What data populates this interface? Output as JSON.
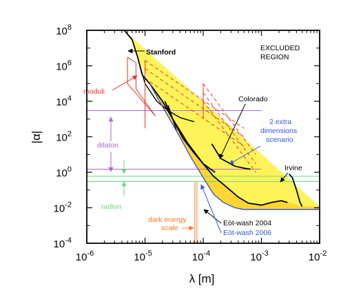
{
  "chart_data": {
    "type": "line",
    "title": "",
    "xlabel": "λ [m]",
    "ylabel": "|α|",
    "x_scale": "log",
    "y_scale": "log",
    "xlim": [
      1e-06,
      0.01
    ],
    "ylim": [
      0.0001,
      100000000.0
    ],
    "grid": false,
    "x_ticks": [
      {
        "value": 1e-06,
        "label": "10",
        "exp": "-6"
      },
      {
        "value": 1e-05,
        "label": "10",
        "exp": "-5"
      },
      {
        "value": 0.0001,
        "label": "10",
        "exp": "-4"
      },
      {
        "value": 0.001,
        "label": "10",
        "exp": "-3"
      },
      {
        "value": 0.01,
        "label": "10",
        "exp": "-2"
      }
    ],
    "y_ticks": [
      {
        "value": 0.0001,
        "label": "10",
        "exp": "-4"
      },
      {
        "value": 0.01,
        "label": "10",
        "exp": "-2"
      },
      {
        "value": 1,
        "label": "10",
        "exp": "0"
      },
      {
        "value": 100.0,
        "label": "10",
        "exp": "2"
      },
      {
        "value": 10000.0,
        "label": "10",
        "exp": "4"
      },
      {
        "value": 1000000.0,
        "label": "10",
        "exp": "6"
      },
      {
        "value": 100000000.0,
        "label": "10",
        "exp": "8"
      }
    ],
    "colors": {
      "excluded": "#fff35a",
      "excluded_2006": "#ffd633",
      "black": "#000000",
      "blue": "#3355dd",
      "red": "#ee3322",
      "purple": "#aa66dd",
      "green": "#66dd77",
      "orange": "#ff7722",
      "dark_blue": "#2233cc"
    },
    "excluded_region": {
      "label_line1": "EXCLUDED",
      "label_line2": "REGION",
      "boundary": [
        [
          4.4e-06,
          100000000.0
        ],
        [
          6e-06,
          30000000.0
        ],
        [
          7.5e-06,
          3000000.0
        ],
        [
          1.2e-05,
          100000.0
        ],
        [
          2e-05,
          10000.0
        ],
        [
          3e-05,
          1000.0
        ],
        [
          5.5e-05,
          40
        ],
        [
          0.0001,
          3
        ],
        [
          0.00015,
          0.6
        ],
        [
          0.00025,
          0.15
        ],
        [
          0.0004,
          0.04
        ],
        [
          0.0006,
          0.018
        ],
        [
          0.001,
          0.014
        ],
        [
          0.0015,
          0.02
        ],
        [
          0.0022,
          0.025
        ],
        [
          0.003,
          0.02
        ],
        [
          0.005,
          0.012
        ],
        [
          0.01,
          0.012
        ]
      ],
      "eotwash_2006_boundary": [
        [
          1.2e-05,
          100000.0
        ],
        [
          2e-05,
          5000.0
        ],
        [
          3.5e-05,
          200
        ],
        [
          6e-05,
          8
        ],
        [
          0.0001,
          0.5
        ],
        [
          0.00015,
          0.06
        ],
        [
          0.00022,
          0.02
        ],
        [
          0.00035,
          0.01
        ],
        [
          0.0005,
          0.008
        ],
        [
          0.001,
          0.008
        ],
        [
          0.01,
          0.008
        ]
      ]
    },
    "series": [
      {
        "name": "Stanford",
        "color": "#000000",
        "points": [
          [
            4.4e-06,
            100000000.0
          ],
          [
            6e-06,
            30000000.0
          ],
          [
            7.5e-06,
            3000000.0
          ],
          [
            9e-06,
            300000.0
          ],
          [
            1.2e-05,
            100000.0
          ],
          [
            2e-05,
            10000.0
          ],
          [
            3e-05,
            1000.0
          ],
          [
            5.5e-05,
            40
          ],
          [
            0.0001,
            3
          ],
          [
            0.00015,
            0.6
          ],
          [
            0.00025,
            0.15
          ],
          [
            0.0004,
            0.04
          ],
          [
            0.0006,
            0.018
          ],
          [
            0.001,
            0.014
          ],
          [
            0.0015,
            0.02
          ],
          [
            0.0022,
            0.025
          ],
          [
            0.0028,
            0.02
          ]
        ]
      },
      {
        "name": "Colorado",
        "color": "#000000",
        "points": [
          [
            0.00014,
            40
          ],
          [
            0.0002,
            6
          ],
          [
            0.00035,
            2.2
          ],
          [
            0.00055,
            1.6
          ],
          [
            0.00065,
            1.5
          ]
        ]
      },
      {
        "name": "Irvine",
        "color": "#000000",
        "points": [
          [
            0.003,
            0.8
          ],
          [
            0.0034,
            0.5
          ],
          [
            0.004,
            0.1
          ],
          [
            0.0046,
            0.02
          ],
          [
            0.005,
            0.012
          ]
        ]
      },
      {
        "name": "Eöt-wash 2004",
        "color": "#000000",
        "points": [
          [
            2.2e-05,
            10000.0
          ],
          [
            3e-05,
            1000.0
          ],
          [
            4.5e-05,
            80
          ],
          [
            7e-05,
            12
          ],
          [
            0.0001,
            3
          ],
          [
            0.00016,
            1
          ]
        ]
      },
      {
        "name": "Eöt-wash 2006",
        "color": "#3355dd",
        "points": [
          [
            1.2e-05,
            100000.0
          ],
          [
            2e-05,
            5000.0
          ],
          [
            3.5e-05,
            200
          ],
          [
            6e-05,
            8
          ],
          [
            0.0001,
            0.5
          ],
          [
            0.00015,
            0.06
          ],
          [
            0.00022,
            0.02
          ],
          [
            0.00035,
            0.01
          ],
          [
            0.0005,
            0.008
          ],
          [
            0.001,
            0.008
          ],
          [
            0.01,
            0.008
          ]
        ]
      }
    ],
    "extra_lines": [
      {
        "name": "Stanford lower branch",
        "color": "#000000",
        "points": [
          [
            7.5e-06,
            3000000.0
          ],
          [
            1e-05,
            100000.0
          ],
          [
            1.6e-05,
            10000.0
          ],
          [
            2.5e-05,
            3000.0
          ],
          [
            4e-05,
            1200.0
          ],
          [
            7e-05,
            700.0
          ]
        ]
      },
      {
        "name": "Stanford steep segment",
        "color": "#000000",
        "points": [
          [
            2.5e-05,
            6000.0
          ],
          [
            3e-05,
            1000.0
          ],
          [
            3.5e-05,
            200.0
          ]
        ]
      },
      {
        "name": "2 extra dimensions scenario",
        "color": "#ee3322",
        "dash": "5,4",
        "segments": [
          [
            [
              1e-05,
              2000000.0
            ],
            [
              0.0005,
              300.0
            ]
          ],
          [
            [
              1e-05,
              700000.0
            ],
            [
              0.0005,
              100.0
            ]
          ],
          [
            [
              1e-05,
              200000.0
            ],
            [
              0.0005,
              30.0
            ]
          ],
          [
            [
              0.0001,
              100000.0
            ],
            [
              0.0008,
              10.0
            ]
          ],
          [
            [
              0.0001,
              30000.0
            ],
            [
              0.0008,
              3
            ]
          ],
          [
            [
              0.0001,
              10000.0
            ],
            [
              0.0008,
              1
            ]
          ]
        ]
      },
      {
        "name": "2 extra dimensions scenario outline",
        "color": "#ee3322",
        "segments": [
          [
            [
              1e-05,
              2000000.0
            ],
            [
              1e-05,
              300.0
            ]
          ],
          [
            [
              0.0001,
              100000.0
            ],
            [
              0.0001,
              1000.0
            ]
          ]
        ]
      },
      {
        "name": "moduli",
        "color": "#ee3322",
        "segments": [
          [
            [
              5e-06,
              3000000.0
            ],
            [
              7e-06,
              1500000.0
            ],
            [
              7e-06,
              50000.0
            ],
            [
              1.5e-05,
              1500.0
            ]
          ],
          [
            [
              5e-06,
              3000000.0
            ],
            [
              5e-06,
              100000.0
            ],
            [
              1.5e-05,
              1500.0
            ]
          ]
        ]
      },
      {
        "name": "dilaton",
        "color": "#aa66dd",
        "segments": [
          [
            [
              1e-06,
              3000.0
            ],
            [
              0.001,
              3000.0
            ]
          ],
          [
            [
              1e-06,
              1.5
            ],
            [
              0.001,
              1.5
            ]
          ]
        ]
      },
      {
        "name": "radion",
        "color": "#66dd77",
        "segments": [
          [
            [
              1e-06,
              0.6
            ],
            [
              0.01,
              0.6
            ]
          ],
          [
            [
              1e-06,
              0.3
            ],
            [
              0.01,
              0.3
            ]
          ]
        ]
      },
      {
        "name": "dark energy scale",
        "color": "#ff7722",
        "segments": [
          [
            [
              7.2e-05,
              0.0001
            ],
            [
              7.2e-05,
              0.3
            ]
          ],
          [
            [
              7.8e-05,
              0.0001
            ],
            [
              7.8e-05,
              0.3
            ]
          ]
        ]
      }
    ],
    "annotations": [
      {
        "text": "Stanford",
        "color": "#000000",
        "bold": true
      },
      {
        "text": "moduli",
        "color": "#ee3322"
      },
      {
        "text": "Colorado",
        "color": "#000000"
      },
      {
        "text": "2 extra",
        "color": "#3355dd"
      },
      {
        "text": "dimensions",
        "color": "#3355dd"
      },
      {
        "text": "scenario",
        "color": "#3355dd"
      },
      {
        "text": "dilaton",
        "color": "#aa66dd"
      },
      {
        "text": "Irvine",
        "color": "#000000"
      },
      {
        "text": "radion",
        "color": "#66dd77"
      },
      {
        "text": "dark energy",
        "color": "#ff7722"
      },
      {
        "text": "scale",
        "color": "#ff7722"
      },
      {
        "text": "Eöt-wash 2004",
        "color": "#000000"
      },
      {
        "text": "Eöt-wash 2006",
        "color": "#3355dd"
      }
    ]
  }
}
